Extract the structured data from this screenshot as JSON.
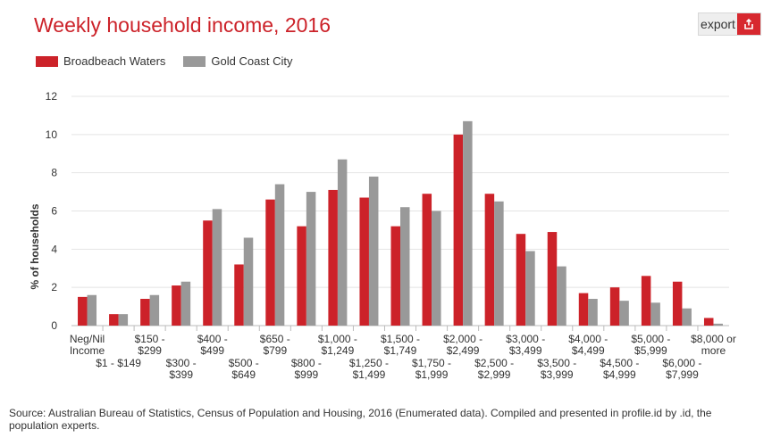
{
  "header": {
    "title": "Weekly household income, 2016",
    "export_label": "export",
    "export_icon": "share-export-icon"
  },
  "colors": {
    "title": "#cc2229",
    "series_1": "#cc2229",
    "series_2": "#999999",
    "export_icon_bg": "#d7282f"
  },
  "footer": {
    "source": "Source: Australian Bureau of Statistics, Census of Population and Housing, 2016 (Enumerated data). Compiled and presented in profile.id by .id, the population experts."
  },
  "chart_data": {
    "type": "bar",
    "title": "Weekly household income, 2016",
    "xlabel": "",
    "ylabel": "% of households",
    "ylim": [
      0,
      12
    ],
    "yticks": [
      0,
      2,
      4,
      6,
      8,
      10,
      12
    ],
    "grid": true,
    "legend": "top-left",
    "categories": [
      [
        "Neg/Nil",
        "Income"
      ],
      [
        "$1 - $149"
      ],
      [
        "$150 -",
        "$299"
      ],
      [
        "$300 -",
        "$399"
      ],
      [
        "$400 -",
        "$499"
      ],
      [
        "$500 -",
        "$649"
      ],
      [
        "$650 -",
        "$799"
      ],
      [
        "$800 -",
        "$999"
      ],
      [
        "$1,000 -",
        "$1,249"
      ],
      [
        "$1,250 -",
        "$1,499"
      ],
      [
        "$1,500 -",
        "$1,749"
      ],
      [
        "$1,750 -",
        "$1,999"
      ],
      [
        "$2,000 -",
        "$2,499"
      ],
      [
        "$2,500 -",
        "$2,999"
      ],
      [
        "$3,000 -",
        "$3,499"
      ],
      [
        "$3,500 -",
        "$3,999"
      ],
      [
        "$4,000 -",
        "$4,499"
      ],
      [
        "$4,500 -",
        "$4,999"
      ],
      [
        "$5,000 -",
        "$5,999"
      ],
      [
        "$6,000 -",
        "$7,999"
      ],
      [
        "$8,000 or",
        "more"
      ]
    ],
    "series": [
      {
        "name": "Broadbeach Waters",
        "color": "#cc2229",
        "values": [
          1.5,
          0.6,
          1.4,
          2.1,
          5.5,
          3.2,
          6.6,
          5.2,
          7.1,
          6.7,
          5.2,
          6.9,
          10.0,
          6.9,
          4.8,
          4.9,
          1.7,
          2.0,
          2.6,
          2.3,
          0.4
        ]
      },
      {
        "name": "Gold Coast City",
        "color": "#999999",
        "values": [
          1.6,
          0.6,
          1.6,
          2.3,
          6.1,
          4.6,
          7.4,
          7.0,
          8.7,
          7.8,
          6.2,
          6.0,
          10.7,
          6.5,
          3.9,
          3.1,
          1.4,
          1.3,
          1.2,
          0.9,
          0.1
        ]
      }
    ]
  }
}
